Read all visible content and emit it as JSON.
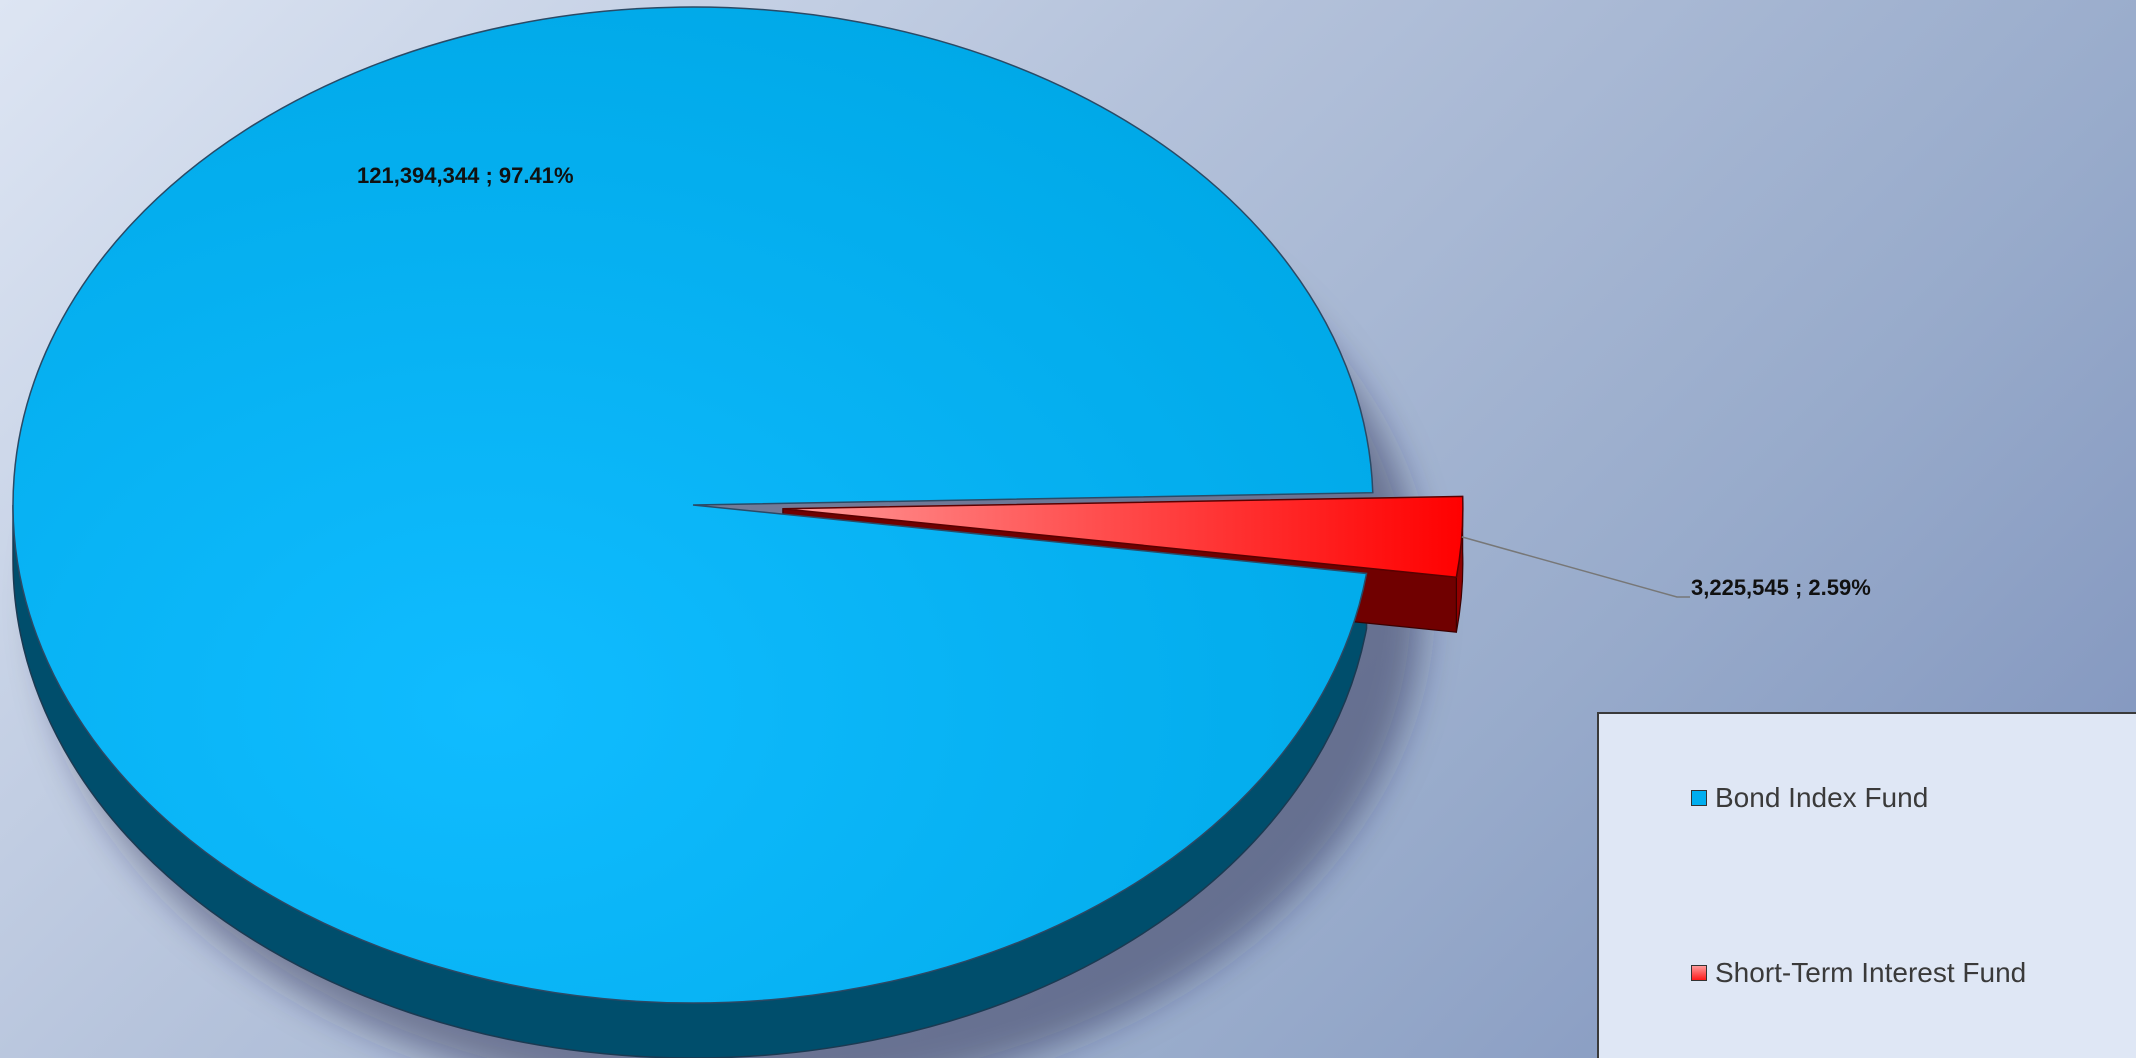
{
  "chart_data": {
    "type": "pie",
    "style": "3d-exploded",
    "categories": [
      "Bond Index Fund",
      "Short-Term Interest Fund"
    ],
    "values": [
      121394344,
      3225545
    ],
    "percentages": [
      97.41,
      2.59
    ],
    "data_labels": [
      "121,394,344 ; 97.41%",
      "3,225,545 ; 2.59%"
    ],
    "colors": [
      "#00aeef",
      "#ff1a1a"
    ],
    "exploded": [
      false,
      true
    ],
    "legend": {
      "position": "bottom-right",
      "entries": [
        "Bond Index Fund",
        "Short-Term Interest Fund"
      ]
    }
  }
}
